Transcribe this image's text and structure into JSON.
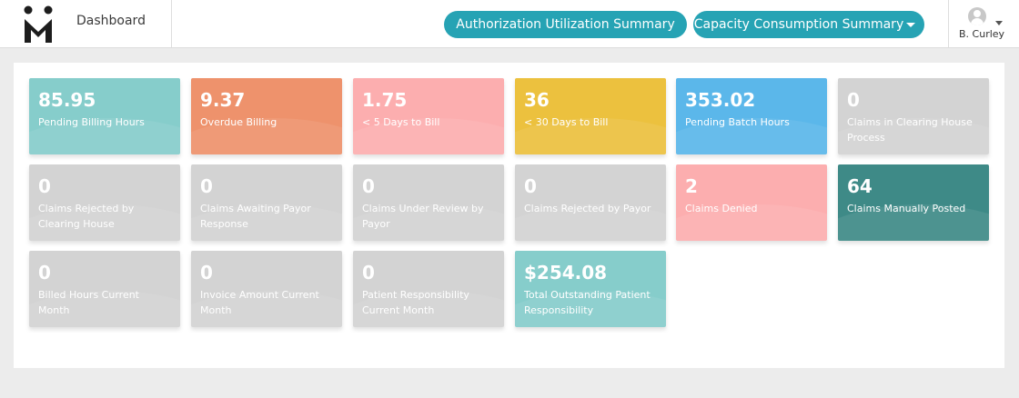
{
  "header": {
    "title": "Dashboard",
    "buttons": {
      "authorization": "Authorization Utilization Summary",
      "capacity": "Capacity Consumption Summary"
    },
    "user": {
      "name": "B. Curley"
    },
    "colors": {
      "accent": "#26a3b4"
    }
  },
  "cards": [
    {
      "value": "85.95",
      "label": "Pending Billing Hours",
      "color": "#86cdcb"
    },
    {
      "value": "9.37",
      "label": "Overdue Billing",
      "color": "#ee926c"
    },
    {
      "value": "1.75",
      "label": "< 5 Days to Bill",
      "color": "#fcaeaf"
    },
    {
      "value": "36",
      "label": "< 30 Days to Bill",
      "color": "#ecc13e"
    },
    {
      "value": "353.02",
      "label": "Pending Batch Hours",
      "color": "#5bb7ea"
    },
    {
      "value": "0",
      "label": "Claims in Clearing House Process",
      "color": "#d3d3d3"
    },
    {
      "value": "0",
      "label": "Claims Rejected by Clearing House",
      "color": "#d3d3d3"
    },
    {
      "value": "0",
      "label": "Claims Awaiting Payor Response",
      "color": "#d3d3d3"
    },
    {
      "value": "0",
      "label": "Claims Under Review by Payor",
      "color": "#d3d3d3"
    },
    {
      "value": "0",
      "label": "Claims Rejected by Payor",
      "color": "#d3d3d3"
    },
    {
      "value": "2",
      "label": "Claims Denied",
      "color": "#fcaeaf"
    },
    {
      "value": "64",
      "label": "Claims Manually Posted",
      "color": "#3e8a87"
    },
    {
      "value": "0",
      "label": "Billed Hours Current Month",
      "color": "#d3d3d3"
    },
    {
      "value": "0",
      "label": "Invoice Amount Current Month",
      "color": "#d3d3d3"
    },
    {
      "value": "0",
      "label": "Patient Responsibility Current Month",
      "color": "#d3d3d3"
    },
    {
      "value": "$254.08",
      "label": "Total Outstanding Patient Responsibility",
      "color": "#86cdcb"
    }
  ]
}
